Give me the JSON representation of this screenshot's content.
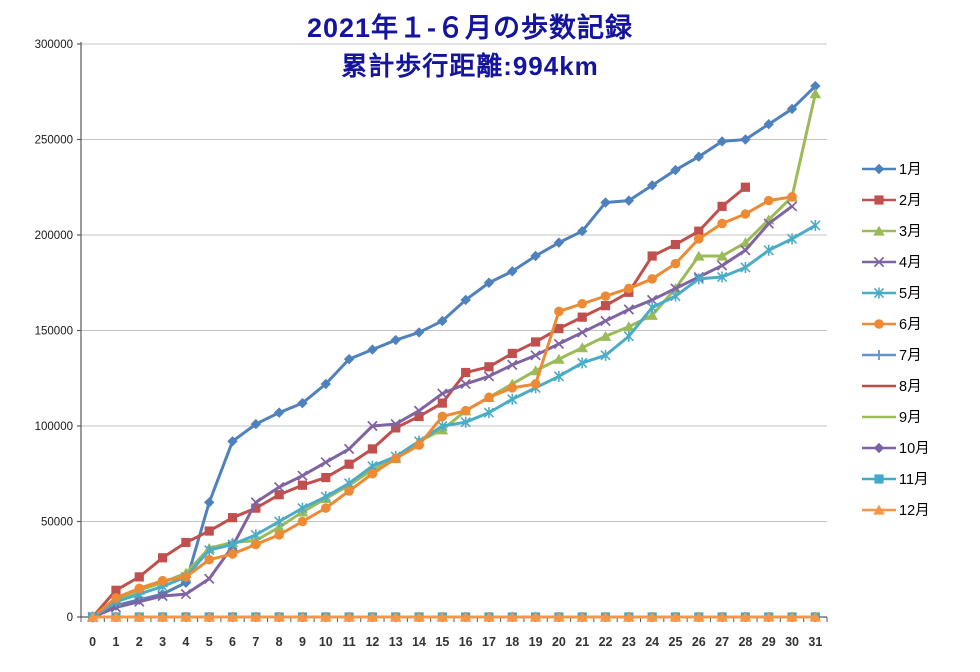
{
  "chart_data": {
    "type": "line",
    "title": "2021年１-６月の歩数記録",
    "subtitle": "累計歩行距離:994km",
    "title_color": "#14149F",
    "xlabel": "",
    "ylabel": "",
    "ylim": [
      0,
      300000
    ],
    "y_tick_step": 50000,
    "y_tick_labels": [
      "0",
      "50000",
      "100000",
      "150000",
      "200000",
      "250000",
      "300000"
    ],
    "x_ticks": [
      "0",
      "1",
      "2",
      "3",
      "4",
      "5",
      "6",
      "7",
      "8",
      "9",
      "10",
      "11",
      "12",
      "13",
      "14",
      "15",
      "16",
      "17",
      "18",
      "19",
      "20",
      "21",
      "22",
      "23",
      "24",
      "25",
      "26",
      "27",
      "28",
      "29",
      "30",
      "31"
    ],
    "grid": true,
    "legend_position": "right",
    "series": [
      {
        "name": "1月",
        "color": "#4F81BD",
        "marker": "diamond",
        "values": [
          0,
          6000,
          9000,
          12000,
          18000,
          60000,
          92000,
          101000,
          107000,
          112000,
          122000,
          135000,
          140000,
          145000,
          149000,
          155000,
          166000,
          175000,
          181000,
          189000,
          196000,
          202000,
          217000,
          218000,
          226000,
          234000,
          241000,
          249000,
          250000,
          258000,
          266000,
          278000
        ]
      },
      {
        "name": "2月",
        "color": "#C0504D",
        "marker": "square",
        "values": [
          0,
          14000,
          21000,
          31000,
          39000,
          45000,
          52000,
          57000,
          64000,
          69000,
          73000,
          80000,
          88000,
          99000,
          105000,
          112000,
          128000,
          131000,
          138000,
          144000,
          151000,
          157000,
          163000,
          170000,
          189000,
          195000,
          202000,
          215000,
          225000
        ]
      },
      {
        "name": "3月",
        "color": "#9BBB59",
        "marker": "triangle",
        "values": [
          0,
          9000,
          14000,
          18000,
          23000,
          36000,
          39000,
          40000,
          47000,
          55000,
          62000,
          69000,
          77000,
          83000,
          92000,
          98000,
          108000,
          115000,
          122000,
          129000,
          135000,
          141000,
          147000,
          152000,
          158000,
          172000,
          189000,
          189000,
          196000,
          208000,
          220000,
          274000
        ]
      },
      {
        "name": "4月",
        "color": "#8064A2",
        "marker": "x",
        "values": [
          0,
          5000,
          8000,
          11000,
          12000,
          20000,
          37000,
          60000,
          68000,
          74000,
          81000,
          88000,
          100000,
          101000,
          108000,
          117000,
          122000,
          126000,
          132000,
          137000,
          143000,
          149000,
          155000,
          161000,
          166000,
          172000,
          178000,
          184000,
          192000,
          206000,
          215000
        ]
      },
      {
        "name": "5月",
        "color": "#4BACC6",
        "marker": "asterisk",
        "values": [
          0,
          8000,
          12000,
          16000,
          21000,
          35000,
          38000,
          43000,
          50000,
          57000,
          63000,
          70000,
          79000,
          84000,
          92000,
          100000,
          102000,
          107000,
          114000,
          120000,
          126000,
          133000,
          137000,
          147000,
          162000,
          168000,
          177000,
          178000,
          183000,
          192000,
          198000,
          205000
        ]
      },
      {
        "name": "6月",
        "color": "#ED8A33",
        "marker": "circle",
        "values": [
          0,
          10000,
          15000,
          19000,
          21000,
          30000,
          33000,
          38000,
          43000,
          50000,
          57000,
          66000,
          75000,
          83000,
          90000,
          105000,
          108000,
          115000,
          120000,
          122000,
          160000,
          164000,
          168000,
          172000,
          177000,
          185000,
          198000,
          206000,
          211000,
          218000,
          220000
        ]
      },
      {
        "name": "7月",
        "color": "#6295CE",
        "marker": "plus",
        "flat_zero": true,
        "days": 31
      },
      {
        "name": "8月",
        "color": "#BE4B48",
        "marker": "none",
        "flat_zero": true,
        "days": 31
      },
      {
        "name": "9月",
        "color": "#9CBB5D",
        "marker": "none",
        "flat_zero": true,
        "days": 30
      },
      {
        "name": "10月",
        "color": "#7C61A5",
        "marker": "diamond",
        "flat_zero": true,
        "days": 31
      },
      {
        "name": "11月",
        "color": "#42A9C6",
        "marker": "square",
        "flat_zero": true,
        "days": 31
      },
      {
        "name": "12月",
        "color": "#F79646",
        "marker": "triangle",
        "flat_zero": true,
        "days": 31
      }
    ]
  }
}
